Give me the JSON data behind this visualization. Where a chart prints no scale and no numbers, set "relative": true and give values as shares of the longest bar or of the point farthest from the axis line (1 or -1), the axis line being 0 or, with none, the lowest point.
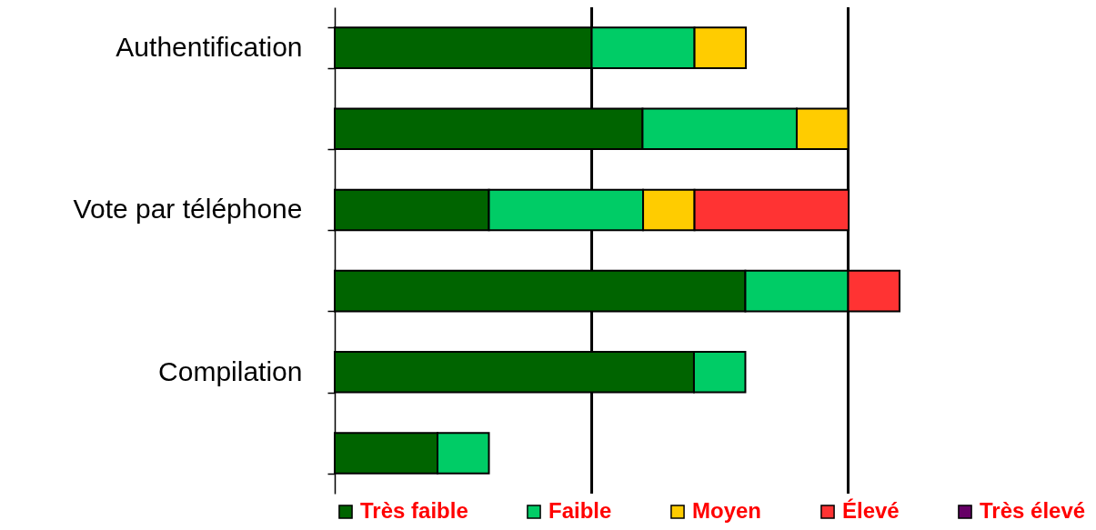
{
  "chart_data": {
    "type": "bar",
    "orientation": "horizontal",
    "stacked": true,
    "relative": true,
    "legend": "bottom",
    "categories": [
      "Authentification",
      null,
      "Vote par téléphone",
      null,
      "Compilation",
      null
    ],
    "series": [
      {
        "name": "Très faible",
        "color": "#006400",
        "values": [
          0.455,
          0.545,
          0.273,
          0.727,
          0.636,
          0.182
        ]
      },
      {
        "name": "Faible",
        "color": "#00cc66",
        "values": [
          0.182,
          0.273,
          0.273,
          0.182,
          0.091,
          0.091
        ]
      },
      {
        "name": "Moyen",
        "color": "#ffcc00",
        "values": [
          0.091,
          0.091,
          0.091,
          null,
          null,
          null
        ]
      },
      {
        "name": "Élevé",
        "color": "#ff3333",
        "values": [
          null,
          null,
          0.273,
          0.091,
          null,
          null
        ]
      },
      {
        "name": "Très élevé",
        "color": "#660066",
        "values": [
          null,
          null,
          null,
          null,
          null,
          null
        ]
      }
    ],
    "ref_lines": [
      {
        "axis": "x",
        "value": 0.455,
        "color": "#000000"
      },
      {
        "axis": "x",
        "value": 0.909,
        "color": "#000000"
      }
    ]
  }
}
